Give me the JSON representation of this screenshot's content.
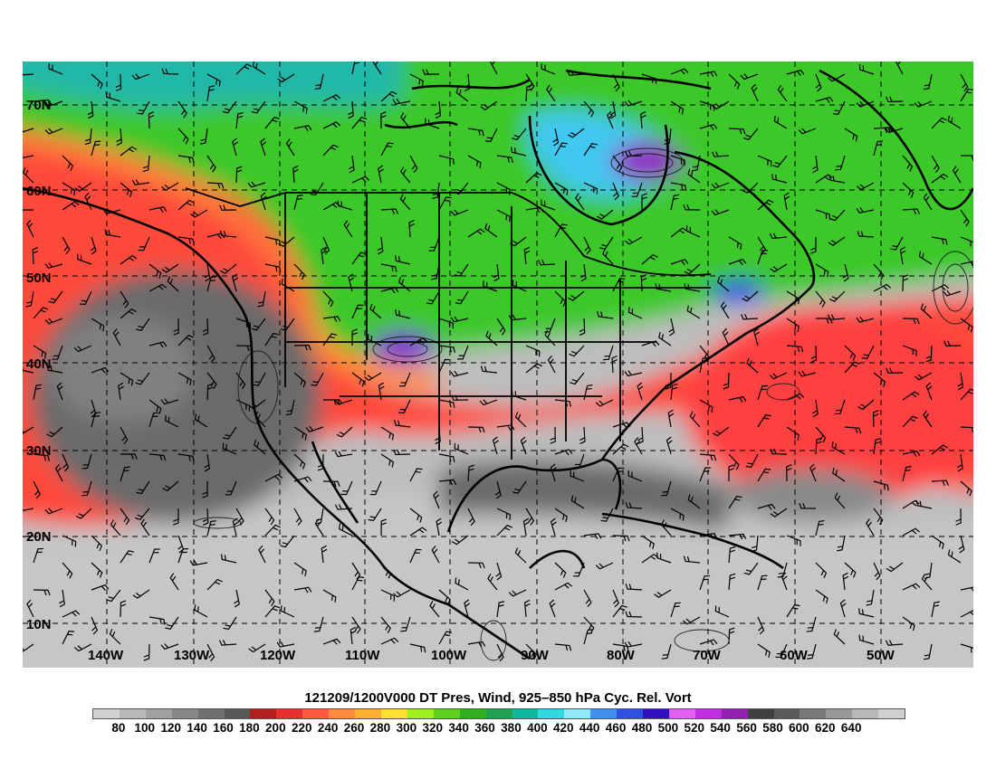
{
  "map": {
    "title": "121209/1200V000 DT Pres, Wind, 925–850 hPa Cyc. Rel. Vort",
    "lat_labels": [
      "10N",
      "20N",
      "30N",
      "40N",
      "50N",
      "60N",
      "70N"
    ],
    "lon_labels": [
      "140W",
      "130W",
      "120W",
      "110W",
      "100W",
      "90W",
      "80W",
      "70W",
      "60W",
      "50W"
    ],
    "colorbar": {
      "labels": [
        "80",
        "100",
        "120",
        "140",
        "160",
        "180",
        "200",
        "220",
        "240",
        "260",
        "280",
        "300",
        "320",
        "340",
        "360",
        "380",
        "400",
        "420",
        "440",
        "460",
        "480",
        "500",
        "520",
        "540",
        "560",
        "580",
        "600",
        "620",
        "640"
      ],
      "colors": [
        "#d0d0d0",
        "#b8b8b8",
        "#a0a0a0",
        "#888888",
        "#707070",
        "#585858",
        "#b02020",
        "#e83030",
        "#ff5a40",
        "#ff8a40",
        "#ffb030",
        "#ffe030",
        "#a0f020",
        "#60d020",
        "#30b020",
        "#20a050",
        "#10b8a0",
        "#30d8e0",
        "#90e8f8",
        "#4090f0",
        "#3050e0",
        "#3010c0",
        "#e060f0",
        "#c030e0",
        "#9020b0",
        "#404040",
        "#5a5a5a",
        "#787878",
        "#989898",
        "#b8b8b8",
        "#d0d0d0"
      ]
    },
    "colors": {
      "coastline": "#000000",
      "gridline": "#000000",
      "low_pt": "#707070",
      "tropics": "#c8c8c8",
      "jet": "#ff4a3a"
    }
  }
}
